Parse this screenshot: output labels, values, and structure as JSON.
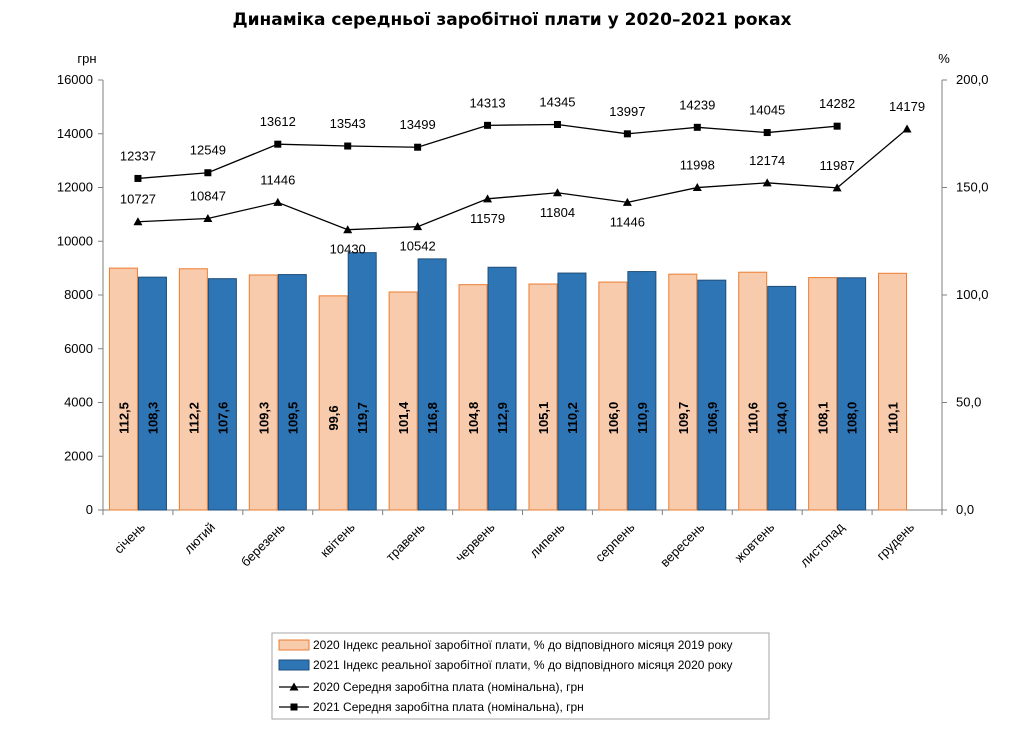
{
  "chart_data": {
    "type": "bar+line",
    "title": "Динаміка середньої заробітної плати у 2020–2021 роках",
    "y_left_unit": "грн",
    "y_right_unit": "%",
    "y_left_range": [
      0,
      16000
    ],
    "y_right_range": [
      0,
      200
    ],
    "y_left_ticks": [
      "0",
      "2000",
      "4000",
      "6000",
      "8000",
      "10000",
      "12000",
      "14000",
      "16000"
    ],
    "y_right_ticks": [
      "0,0",
      "50,0",
      "100,0",
      "150,0",
      "200,0"
    ],
    "categories": [
      "січень",
      "лютий",
      "березень",
      "квітень",
      "травень",
      "червень",
      "липень",
      "серпень",
      "вересень",
      "жовтень",
      "листопад",
      "грудень"
    ],
    "bar_series": [
      {
        "name": "2020 Індекс реальної заробітної плати, % до відповідного місяця 2019 року",
        "color": "#F8CBAD",
        "border": "#ED7D31",
        "values": [
          112.5,
          112.2,
          109.3,
          99.6,
          101.4,
          104.8,
          105.1,
          106.0,
          109.7,
          110.6,
          108.1,
          110.1
        ],
        "labels": [
          "112,5",
          "112,2",
          "109,3",
          "99,6",
          "101,4",
          "104,8",
          "105,1",
          "106,0",
          "109,7",
          "110,6",
          "108,1",
          "110,1"
        ]
      },
      {
        "name": "2021 Індекс реальної заробітної плати, % до відповідного місяця 2020 року",
        "color": "#2E75B6",
        "border": "#1F4E79",
        "values": [
          108.3,
          107.6,
          109.5,
          119.7,
          116.8,
          112.9,
          110.2,
          110.9,
          106.9,
          104.0,
          108.0,
          null
        ],
        "labels": [
          "108,3",
          "107,6",
          "109,5",
          "119,7",
          "116,8",
          "112,9",
          "110,2",
          "110,9",
          "106,9",
          "104,0",
          "108,0",
          ""
        ]
      }
    ],
    "line_series": [
      {
        "name": "2020 Середня заробітна плата (номінальна), грн",
        "marker": "triangle",
        "values": [
          10727,
          10847,
          11446,
          10430,
          10542,
          11579,
          11804,
          11446,
          11998,
          12174,
          11987,
          14179
        ]
      },
      {
        "name": "2021 Середня заробітна плата (номінальна), грн",
        "marker": "square",
        "values": [
          12337,
          12549,
          13612,
          13543,
          13499,
          14313,
          14345,
          13997,
          14239,
          14045,
          14282,
          null
        ]
      }
    ],
    "legend": [
      "2020 Індекс реальної заробітної плати, % до відповідного місяця 2019 року",
      "2021 Індекс реальної заробітної плати, % до відповідного місяця 2020 року",
      "2020 Середня заробітна плата (номінальна), грн",
      "2021 Середня заробітна плата (номінальна), грн"
    ],
    "legend_position": "bottom-center"
  }
}
